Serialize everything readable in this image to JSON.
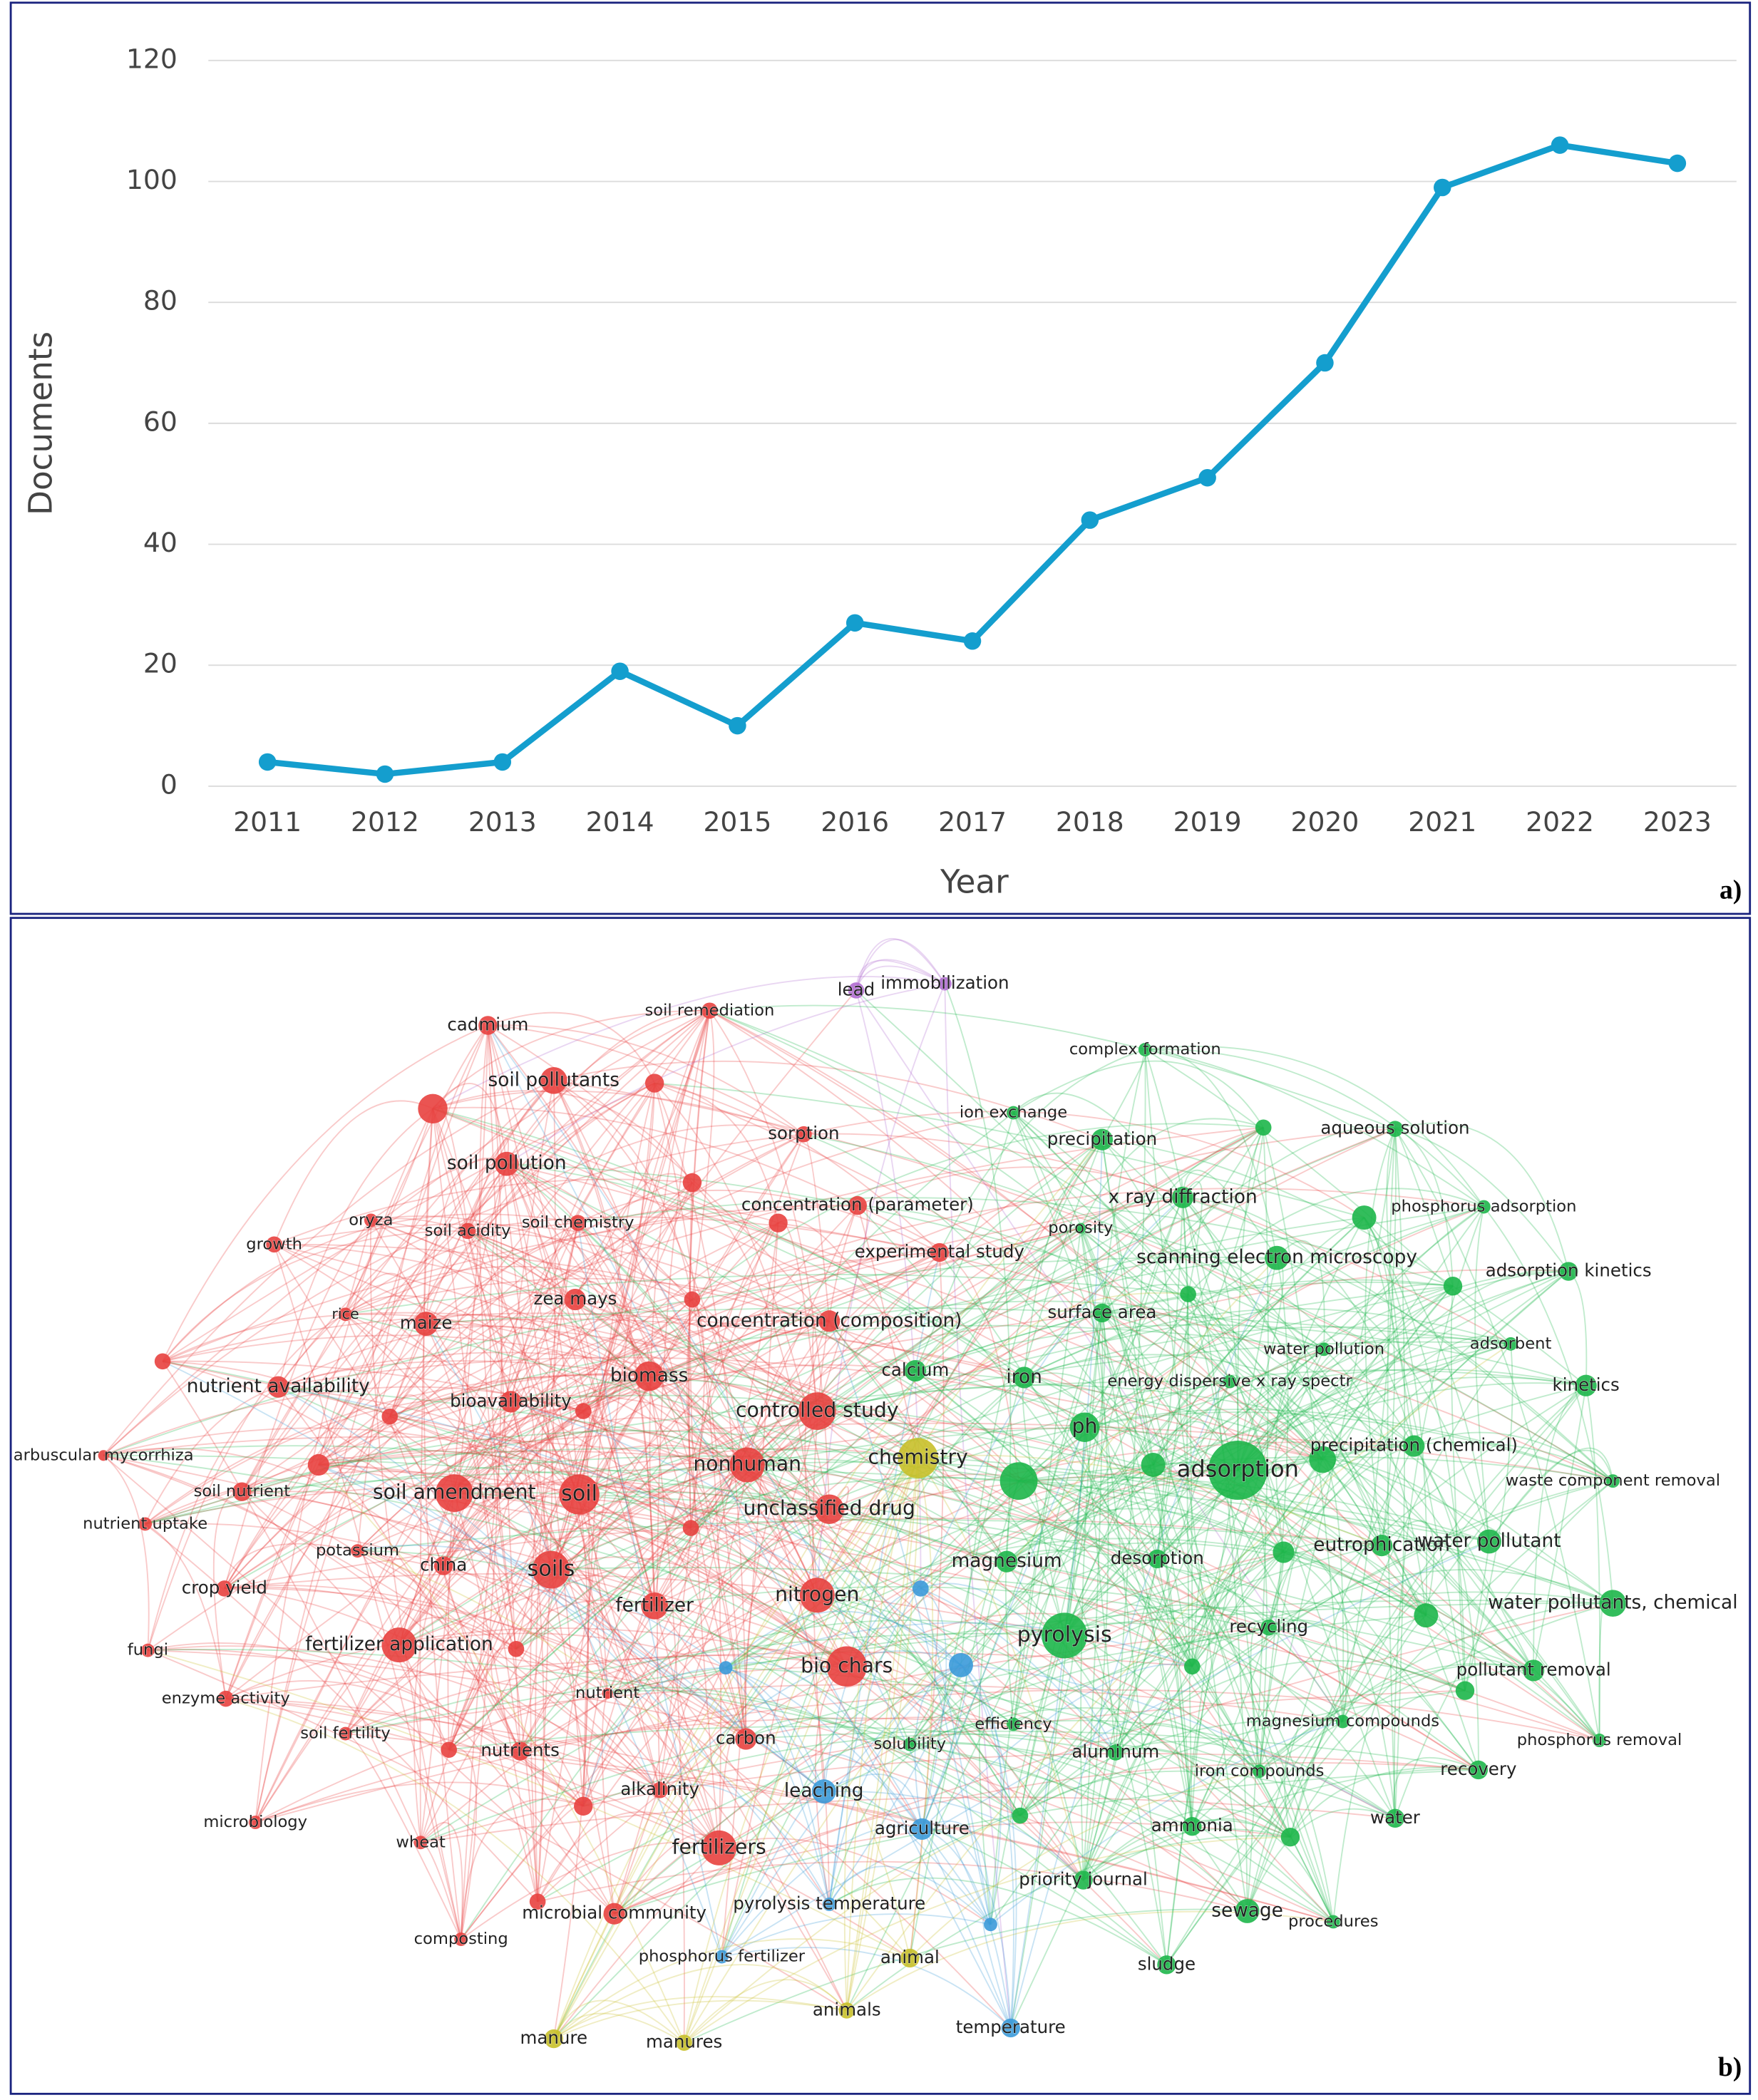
{
  "chart_data": {
    "type": "line",
    "x_label": "Year",
    "y_label": "Documents",
    "panel_label": "a)",
    "categories": [
      "2011",
      "2012",
      "2013",
      "2014",
      "2015",
      "2016",
      "2017",
      "2018",
      "2019",
      "2020",
      "2021",
      "2022",
      "2023"
    ],
    "values": [
      4,
      2,
      4,
      19,
      10,
      27,
      24,
      44,
      51,
      70,
      99,
      106,
      103
    ],
    "color": "#149ece",
    "ylim": [
      0,
      120
    ],
    "yticks": [
      0,
      20,
      40,
      60,
      80,
      100,
      120
    ],
    "grid": true
  },
  "network": {
    "panel_label": "b)",
    "nodes": [
      "cadmium",
      "soil remediation",
      "soil pollutants",
      "sorption",
      "soil pollution",
      "concentration (parameter)",
      "oryza",
      "soil acidity",
      "soil chemistry",
      "growth",
      "experimental study",
      "zea mays",
      "rice",
      "maize",
      "concentration (composition)",
      "nutrient availability",
      "biomass",
      "bioavailability",
      "controlled study",
      "arbuscular mycorrhiza",
      "nonhuman",
      "soil nutrient",
      "soil amendment",
      "soil",
      "unclassified drug",
      "nutrient uptake",
      "potassium",
      "china",
      "soils",
      "crop yield",
      "fertilizer",
      "nitrogen",
      "fungi",
      "fertilizer application",
      "bio chars",
      "enzyme activity",
      "nutrient",
      "soil fertility",
      "nutrients",
      "carbon",
      "alkalinity",
      "microbiology",
      "wheat",
      "fertilizers",
      "microbial community",
      "composting",
      "lead",
      "immobilization",
      "complex formation",
      "ion exchange",
      "aqueous solution",
      "precipitation",
      "x ray diffraction",
      "phosphorus adsorption",
      "porosity",
      "scanning electron microscopy",
      "adsorption kinetics",
      "surface area",
      "water pollution",
      "adsorbent",
      "calcium",
      "iron",
      "energy dispersive x ray spectr",
      "kinetics",
      "ph",
      "precipitation (chemical)",
      "adsorption",
      "waste component removal",
      "eutrophication",
      "water pollutant",
      "magnesium",
      "desorption",
      "water pollutants, chemical",
      "pyrolysis",
      "recycling",
      "pollutant removal",
      "efficiency",
      "magnesium compounds",
      "solubility",
      "aluminum",
      "phosphorus removal",
      "iron compounds",
      "recovery",
      "ammonia",
      "water",
      "priority journal",
      "sewage",
      "procedures",
      "sludge",
      "leaching",
      "agriculture",
      "pyrolysis temperature",
      "phosphorus fertilizer",
      "temperature",
      "chemistry",
      "animal",
      "animals",
      "manure",
      "manures"
    ]
  }
}
